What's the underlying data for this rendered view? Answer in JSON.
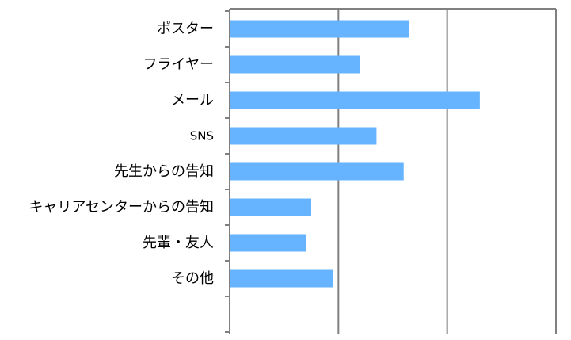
{
  "chart_data": {
    "type": "bar",
    "orientation": "horizontal",
    "categories": [
      "ポスター",
      "フライヤー",
      "メール",
      "SNS",
      "先生からの告知",
      "キャリアセンターからの告知",
      "先輩・友人",
      "その他"
    ],
    "values": [
      33,
      24,
      46,
      27,
      32,
      15,
      14,
      19
    ],
    "xlim": [
      0,
      60
    ],
    "title": "",
    "xlabel": "",
    "ylabel": "",
    "grid": true,
    "legend": "none",
    "bar_color": "#66b3ff",
    "grid_color": "#808080"
  }
}
